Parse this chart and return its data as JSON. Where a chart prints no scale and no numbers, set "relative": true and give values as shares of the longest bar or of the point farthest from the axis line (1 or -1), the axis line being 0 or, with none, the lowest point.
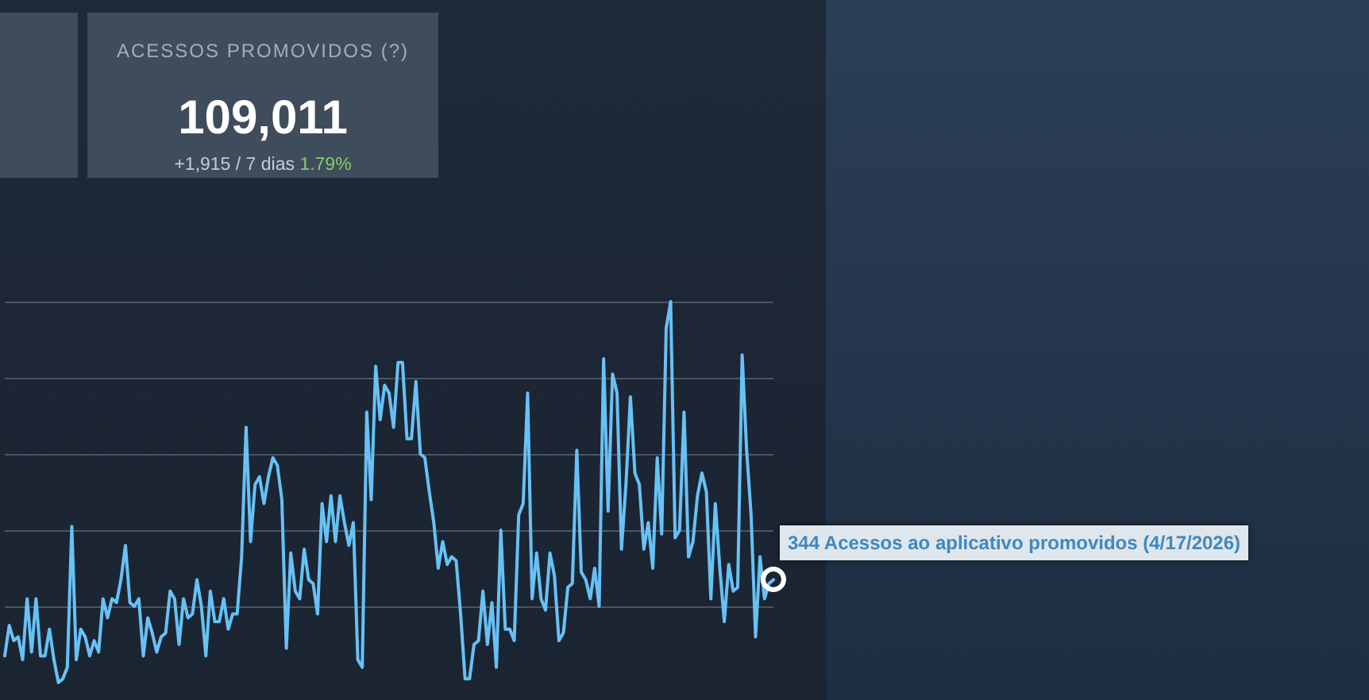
{
  "chart_data": [
    {
      "type": "other",
      "title": "ACESSOS PROMOVIDOS (?)",
      "annotations": [
        "109,011",
        "+1,915 / 7 dias",
        "1.79%"
      ]
    },
    {
      "type": "line",
      "relative": true,
      "color": "#67c1f5",
      "grid": "y",
      "marker": "none",
      "line_style": "solid",
      "annotations": [
        "344 Acessos ao aplicativo promovidos (4/17/2026)"
      ],
      "categories": [
        null,
        null,
        null,
        null,
        null,
        null,
        null,
        null,
        null,
        null,
        null,
        null,
        null,
        null,
        null,
        null,
        null,
        null,
        null,
        null,
        null,
        null,
        null,
        null,
        null,
        null,
        null,
        null,
        null,
        null,
        null,
        null,
        null,
        null,
        null,
        null,
        null,
        null,
        null,
        null,
        null,
        null,
        null,
        null,
        null,
        null,
        null,
        null,
        null,
        null,
        null,
        null,
        null,
        null,
        null,
        null,
        null,
        null,
        null,
        null,
        null,
        null,
        null,
        null,
        null,
        null,
        null,
        null,
        null,
        null,
        null,
        null,
        null,
        null,
        null,
        null,
        null,
        null,
        null,
        null,
        null,
        null,
        null,
        null,
        null,
        null,
        null,
        null,
        null,
        null,
        null,
        null,
        null,
        null,
        null,
        null,
        null,
        null,
        null,
        null,
        null,
        null,
        null,
        null,
        null,
        null,
        null,
        null,
        null,
        null,
        null,
        null,
        null,
        null,
        null,
        null,
        null,
        null,
        null,
        null,
        null,
        null,
        null,
        null,
        null,
        null,
        null,
        null,
        null,
        null,
        null,
        null,
        null,
        null,
        null,
        null,
        null,
        null,
        null,
        null,
        null,
        null,
        null,
        null,
        null,
        null,
        null,
        null,
        null,
        null,
        null,
        null,
        null,
        null,
        null,
        null,
        null,
        null,
        null,
        null,
        null,
        null,
        null,
        null,
        null,
        null,
        null,
        null,
        null,
        null,
        null,
        null,
        null
      ],
      "values": [
        0.07,
        0.15,
        0.11,
        0.12,
        0.06,
        0.22,
        0.08,
        0.22,
        0.07,
        0.07,
        0.14,
        0.06,
        0,
        0.01,
        0.04,
        0.41,
        0.06,
        0.14,
        0.12,
        0.07,
        0.11,
        0.08,
        0.22,
        0.17,
        0.22,
        0.21,
        0.27,
        0.36,
        0.21,
        0.2,
        0.22,
        0.07,
        0.17,
        0.13,
        0.08,
        0.12,
        0.13,
        0.24,
        0.22,
        0.1,
        0.22,
        0.17,
        0.18,
        0.27,
        0.2,
        0.07,
        0.24,
        0.16,
        0.16,
        0.22,
        0.14,
        0.18,
        0.18,
        0.33,
        0.67,
        0.37,
        0.52,
        0.54,
        0.47,
        0.54,
        0.59,
        0.57,
        0.48,
        0.09,
        0.34,
        0.24,
        0.22,
        0.35,
        0.27,
        0.26,
        0.18,
        0.47,
        0.37,
        0.49,
        0.37,
        0.49,
        0.42,
        0.36,
        0.42,
        0.06,
        0.04,
        0.71,
        0.48,
        0.83,
        0.69,
        0.78,
        0.76,
        0.67,
        0.84,
        0.84,
        0.64,
        0.64,
        0.79,
        0.6,
        0.59,
        0.5,
        0.42,
        0.3,
        0.37,
        0.31,
        0.33,
        0.32,
        0.18,
        0.01,
        0.01,
        0.1,
        0.11,
        0.24,
        0.1,
        0.21,
        0.04,
        0.4,
        0.14,
        0.14,
        0.11,
        0.44,
        0.47,
        0.76,
        0.22,
        0.34,
        0.22,
        0.19,
        0.34,
        0.28,
        0.11,
        0.13,
        0.25,
        0.26,
        0.61,
        0.29,
        0.27,
        0.22,
        0.3,
        0.2,
        0.85,
        0.45,
        0.81,
        0.76,
        0.35,
        0.52,
        0.75,
        0.55,
        0.52,
        0.35,
        0.42,
        0.3,
        0.59,
        0.39,
        0.93,
        1,
        0.38,
        0.4,
        0.71,
        0.33,
        0.37,
        0.49,
        0.55,
        0.5,
        0.22,
        0.47,
        0.3,
        0.16,
        0.31,
        0.24,
        0.25,
        0.86,
        0.61,
        0.44,
        0.12,
        0.33,
        0.22,
        0.26,
        0.27
      ]
    }
  ]
}
